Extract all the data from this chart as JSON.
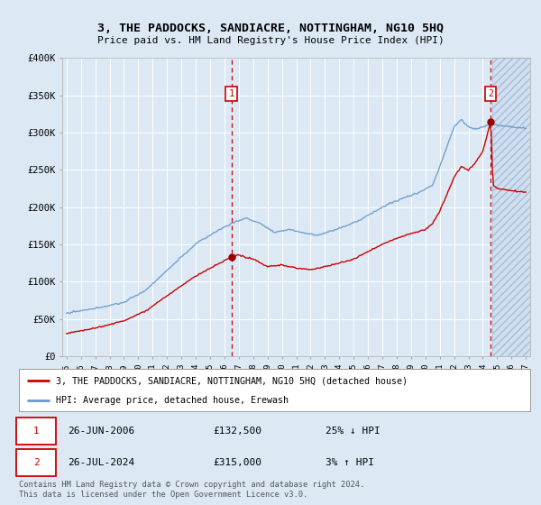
{
  "title": "3, THE PADDOCKS, SANDIACRE, NOTTINGHAM, NG10 5HQ",
  "subtitle": "Price paid vs. HM Land Registry's House Price Index (HPI)",
  "background_color": "#dce9f5",
  "plot_bg_color": "#dce9f5",
  "grid_color": "#ffffff",
  "red_line_color": "#cc0000",
  "blue_line_color": "#6699cc",
  "point1_date": "26-JUN-2006",
  "point1_price": 132500,
  "point1_label": "25% ↓ HPI",
  "point2_date": "26-JUL-2024",
  "point2_price": 315000,
  "point2_label": "3% ↑ HPI",
  "ylim": [
    0,
    400000
  ],
  "yticks": [
    0,
    50000,
    100000,
    150000,
    200000,
    250000,
    300000,
    350000,
    400000
  ],
  "legend_label_red": "3, THE PADDOCKS, SANDIACRE, NOTTINGHAM, NG10 5HQ (detached house)",
  "legend_label_blue": "HPI: Average price, detached house, Erewash",
  "footer": "Contains HM Land Registry data © Crown copyright and database right 2024.\nThis data is licensed under the Open Government Licence v3.0.",
  "point1_x": 2006.48,
  "point2_x": 2024.56,
  "hatch_start": 2024.65,
  "xlim_left": 1994.7,
  "xlim_right": 2027.3
}
